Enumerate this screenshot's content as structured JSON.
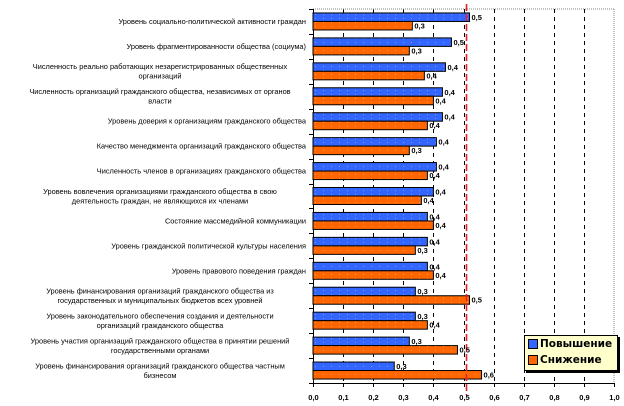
{
  "chart_data": {
    "type": "bar",
    "orientation": "horizontal",
    "title": "",
    "xlabel": "",
    "ylabel": "",
    "xlim": [
      0.0,
      1.0
    ],
    "x_ticks": [
      "0,0",
      "0,1",
      "0,2",
      "0,3",
      "0,4",
      "0,5",
      "0,6",
      "0,7",
      "0,8",
      "0,9",
      "1,0"
    ],
    "x_tick_values": [
      0.0,
      0.1,
      0.2,
      0.3,
      0.4,
      0.5,
      0.6,
      0.7,
      0.8,
      0.9,
      1.0
    ],
    "grid": "vertical dashed",
    "reference_line": {
      "value": 0.51,
      "color": "#e8202a",
      "style": "dashed"
    },
    "legend_position": "bottom-right",
    "categories": [
      [
        "Уровень социально-политической активности граждан"
      ],
      [
        "Уровень фрагментированности общества (социума)"
      ],
      [
        "Численность реально работающих незарегистрированных общественных",
        "организаций"
      ],
      [
        "Численность организаций гражданского общества, независимых от органов",
        "власти"
      ],
      [
        "Уровень доверия к организациям гражданского общества"
      ],
      [
        "Качество менеджмента организаций гражданского общества"
      ],
      [
        "Численность членов в организациях гражданского общества"
      ],
      [
        "Уровень вовлечения организациями гражданского общества в свою",
        "деятельность граждан, не являющихся их членами"
      ],
      [
        "Состояние массмедийной коммуникации"
      ],
      [
        "Уровень гражданской политической культуры населения"
      ],
      [
        "Уровень правового поведения граждан"
      ],
      [
        "Уровень финансирования организаций гражданского общества из",
        "государственных и муниципальных бюджетов всех уровней"
      ],
      [
        "Уровень законодательного обеспечения создания и деятельности",
        "организаций гражданского общества"
      ],
      [
        "Уровень участия организаций гражданского общества в принятии решений",
        "государственными органами"
      ],
      [
        "Уровень финансирования организаций гражданского общества частным",
        "бизнесом"
      ]
    ],
    "series": [
      {
        "name": "Повышение",
        "color": "#3366ff",
        "values": [
          0.52,
          0.46,
          0.44,
          0.43,
          0.43,
          0.41,
          0.41,
          0.4,
          0.38,
          0.38,
          0.38,
          0.34,
          0.34,
          0.32,
          0.27
        ],
        "labels": [
          "0,5",
          "0,5",
          "0,4",
          "0,4",
          "0,4",
          "0,4",
          "0,4",
          "0,4",
          "0,4",
          "0,4",
          "0,4",
          "0,3",
          "0,3",
          "0,3",
          "0,3"
        ]
      },
      {
        "name": "Снижение",
        "color": "#ff6600",
        "values": [
          0.33,
          0.32,
          0.37,
          0.4,
          0.38,
          0.32,
          0.38,
          0.36,
          0.4,
          0.34,
          0.4,
          0.52,
          0.38,
          0.48,
          0.56
        ],
        "labels": [
          "0,3",
          "0,3",
          "0,4",
          "0,4",
          "0,4",
          "0,3",
          "0,4",
          "0,4",
          "0,4",
          "0,3",
          "0,4",
          "0,5",
          "0,4",
          "0,5",
          "0,6"
        ]
      }
    ]
  },
  "legend": {
    "items": [
      {
        "label": "Повышение",
        "color": "#3366ff"
      },
      {
        "label": "Снижение",
        "color": "#ff6600"
      }
    ]
  }
}
